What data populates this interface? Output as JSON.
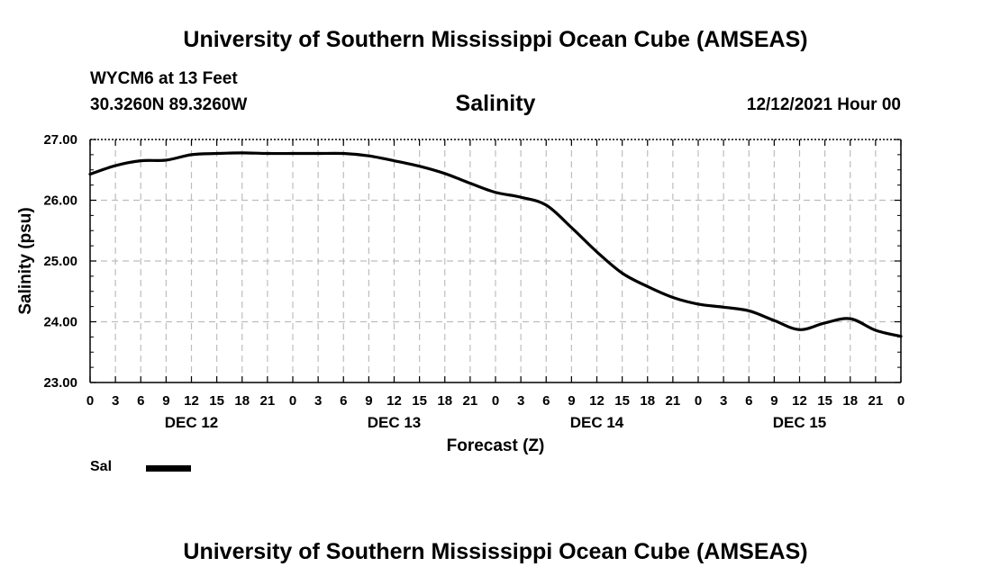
{
  "header": {
    "title": "University of Southern Mississippi Ocean Cube (AMSEAS)",
    "station": "WYCM6 at 13 Feet",
    "coords": "30.3260N  89.3260W",
    "chart_name": "Salinity",
    "datetime": "12/12/2021 Hour 00"
  },
  "footer": {
    "title": "University of Southern Mississippi Ocean Cube (AMSEAS)"
  },
  "legend": {
    "label": "Sal"
  },
  "colors": {
    "line": "#000000",
    "grid": "#bdbdbd"
  },
  "chart_data": {
    "type": "line",
    "title": "Salinity",
    "xlabel": "Forecast (Z)",
    "ylabel": "Salinity (psu)",
    "xlim": [
      0,
      96
    ],
    "ylim": [
      23,
      27
    ],
    "yticks": [
      "23.00",
      "24.00",
      "25.00",
      "26.00",
      "27.00"
    ],
    "ytick_values": [
      23,
      24,
      25,
      26,
      27
    ],
    "xtick_labels": [
      "0",
      "3",
      "6",
      "9",
      "12",
      "15",
      "18",
      "21",
      "0",
      "3",
      "6",
      "9",
      "12",
      "15",
      "18",
      "21",
      "0",
      "3",
      "6",
      "9",
      "12",
      "15",
      "18",
      "21",
      "0",
      "3",
      "6",
      "9",
      "12",
      "15",
      "18",
      "21",
      "0"
    ],
    "day_labels": [
      {
        "hour": 12,
        "label": "DEC 12"
      },
      {
        "hour": 36,
        "label": "DEC 13"
      },
      {
        "hour": 60,
        "label": "DEC 14"
      },
      {
        "hour": 84,
        "label": "DEC 15"
      }
    ],
    "grid": true,
    "series": [
      {
        "name": "Sal",
        "x": [
          0,
          3,
          6,
          9,
          12,
          15,
          18,
          21,
          24,
          27,
          30,
          33,
          36,
          39,
          42,
          45,
          48,
          51,
          54,
          57,
          60,
          63,
          66,
          69,
          72,
          75,
          78,
          81,
          84,
          87,
          90,
          93,
          96
        ],
        "values": [
          26.43,
          26.57,
          26.65,
          26.66,
          26.75,
          26.77,
          26.78,
          26.77,
          26.77,
          26.77,
          26.77,
          26.73,
          26.65,
          26.56,
          26.44,
          26.28,
          26.13,
          26.05,
          25.92,
          25.55,
          25.15,
          24.8,
          24.58,
          24.4,
          24.29,
          24.24,
          24.18,
          24.02,
          23.87,
          23.98,
          24.05,
          23.86,
          23.76
        ]
      }
    ]
  }
}
